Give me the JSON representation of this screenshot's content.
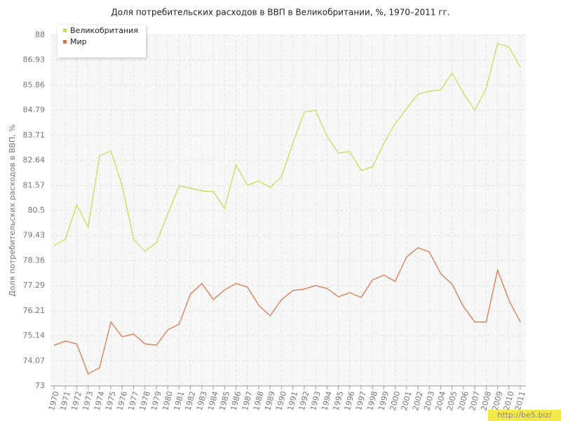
{
  "chart_data": {
    "type": "line",
    "title": "Доля потребительских расходов в ВВП в Великобритании, %, 1970–2011 гг.",
    "y_label": "Доля потребительских расходов в ВВП, %",
    "categories": [
      "1970",
      "1971",
      "1972",
      "1973",
      "1974",
      "1975",
      "1976",
      "1977",
      "1978",
      "1979",
      "1980",
      "1981",
      "1982",
      "1983",
      "1984",
      "1985",
      "1986",
      "1987",
      "1988",
      "1989",
      "1990",
      "1991",
      "1992",
      "1993",
      "1994",
      "1995",
      "1996",
      "1997",
      "1998",
      "1999",
      "2000",
      "2001",
      "2002",
      "2003",
      "2004",
      "2005",
      "2006",
      "2007",
      "2008",
      "2009",
      "2010",
      "2011"
    ],
    "series": [
      {
        "name": "Великобритания",
        "color": "#c3dc4a",
        "values": [
          79.0,
          79.27,
          80.74,
          79.78,
          82.84,
          83.05,
          81.55,
          79.27,
          78.76,
          79.12,
          80.35,
          81.55,
          81.46,
          81.34,
          81.31,
          80.59,
          82.45,
          81.58,
          81.76,
          81.49,
          81.94,
          83.38,
          84.7,
          84.79,
          83.68,
          82.96,
          83.02,
          82.21,
          82.36,
          83.38,
          84.22,
          84.85,
          85.48,
          85.6,
          85.66,
          86.38,
          85.51,
          84.79,
          85.72,
          87.64,
          87.49,
          86.62
        ]
      },
      {
        "name": "Мир",
        "color": "#e0703e",
        "values": [
          74.74,
          74.92,
          74.8,
          73.51,
          73.78,
          75.73,
          75.1,
          75.22,
          74.8,
          74.74,
          75.4,
          75.64,
          76.93,
          77.38,
          76.69,
          77.11,
          77.38,
          77.23,
          76.45,
          76.0,
          76.69,
          77.08,
          77.14,
          77.29,
          77.17,
          76.81,
          76.99,
          76.78,
          77.53,
          77.74,
          77.47,
          78.52,
          78.91,
          78.73,
          77.8,
          77.35,
          76.39,
          75.73,
          75.73,
          77.95,
          76.66,
          75.73
        ]
      }
    ],
    "ylim": [
      73,
      88
    ],
    "yticks": [
      73,
      74.07,
      75.14,
      76.21,
      77.29,
      78.36,
      79.43,
      80.5,
      81.57,
      82.64,
      83.71,
      84.79,
      85.86,
      86.93,
      88
    ],
    "grid": true,
    "legend": "upper left",
    "watermark": "http://be5.biz/"
  }
}
